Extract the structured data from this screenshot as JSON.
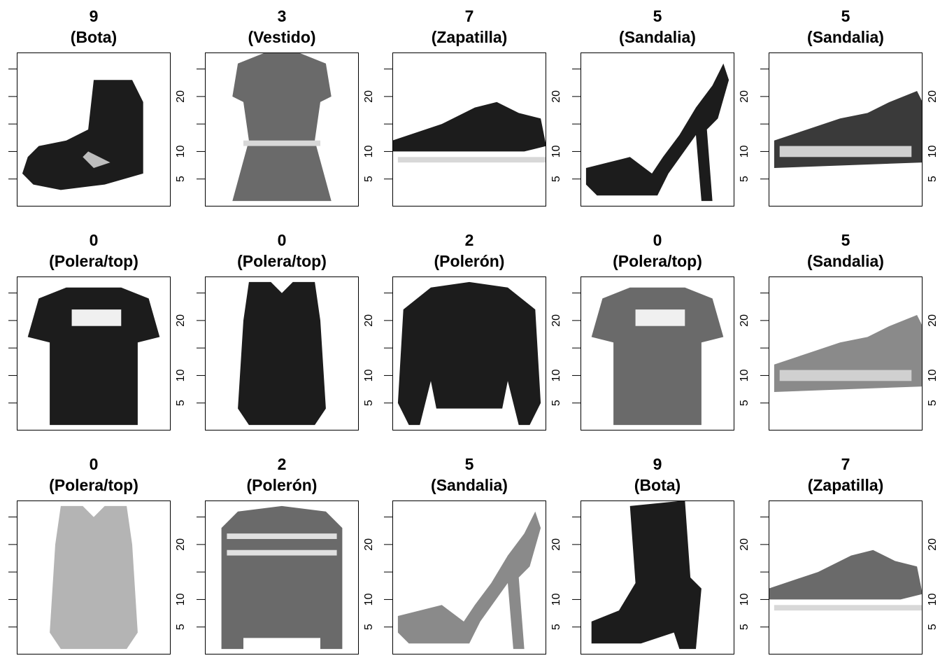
{
  "chart_data": {
    "type": "heatmap",
    "layout": {
      "rows": 3,
      "cols": 5
    },
    "y_ticks": [
      5,
      10,
      20
    ],
    "y_minor_ticks": [
      5,
      10,
      15,
      20,
      25
    ],
    "ylim": [
      0,
      28
    ],
    "xlim": [
      0,
      28
    ],
    "colormap": "grayscale (high intensity = dark)",
    "panels": [
      {
        "label_num": "9",
        "label_name": "(Bota)",
        "item": "boot",
        "tone": "dark"
      },
      {
        "label_num": "3",
        "label_name": "(Vestido)",
        "item": "dress",
        "tone": "gray"
      },
      {
        "label_num": "7",
        "label_name": "(Zapatilla)",
        "item": "sneaker",
        "tone": "dark"
      },
      {
        "label_num": "5",
        "label_name": "(Sandalia)",
        "item": "heel",
        "tone": "dark"
      },
      {
        "label_num": "5",
        "label_name": "(Sandalia)",
        "item": "sandal",
        "tone": "mixed"
      },
      {
        "label_num": "0",
        "label_name": "(Polera/top)",
        "item": "tshirt",
        "tone": "dark"
      },
      {
        "label_num": "0",
        "label_name": "(Polera/top)",
        "item": "tank",
        "tone": "dark"
      },
      {
        "label_num": "2",
        "label_name": "(Polerón)",
        "item": "sweater",
        "tone": "dark"
      },
      {
        "label_num": "0",
        "label_name": "(Polera/top)",
        "item": "tshirt",
        "tone": "gray"
      },
      {
        "label_num": "5",
        "label_name": "(Sandalia)",
        "item": "sandal",
        "tone": "light"
      },
      {
        "label_num": "0",
        "label_name": "(Polera/top)",
        "item": "tank",
        "tone": "lightgray"
      },
      {
        "label_num": "2",
        "label_name": "(Polerón)",
        "item": "striped",
        "tone": "gray"
      },
      {
        "label_num": "5",
        "label_name": "(Sandalia)",
        "item": "heel",
        "tone": "light"
      },
      {
        "label_num": "9",
        "label_name": "(Bota)",
        "item": "boot2",
        "tone": "dark"
      },
      {
        "label_num": "7",
        "label_name": "(Zapatilla)",
        "item": "sneaker",
        "tone": "gray"
      }
    ]
  }
}
